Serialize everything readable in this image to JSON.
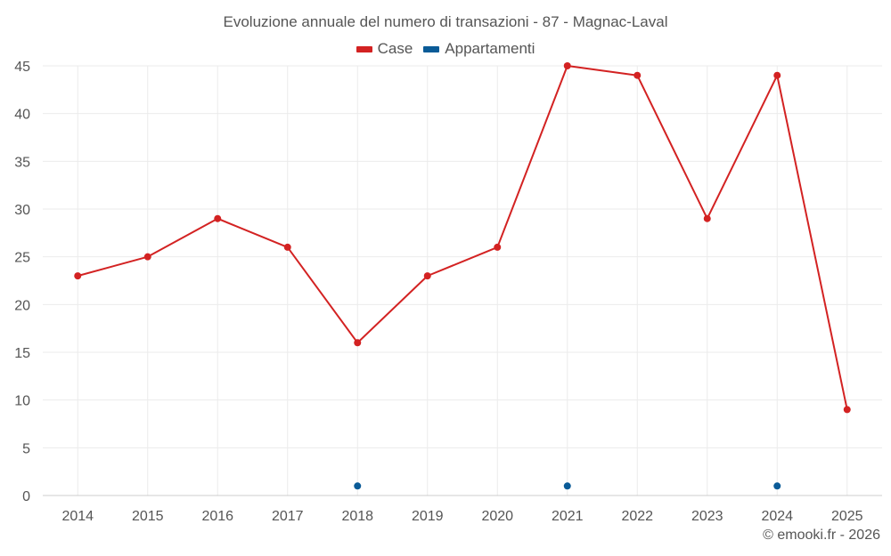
{
  "chart_data": {
    "type": "line",
    "title": "Evoluzione annuale del numero di transazioni - 87 - Magnac-Laval",
    "categories": [
      "2014",
      "2015",
      "2016",
      "2017",
      "2018",
      "2019",
      "2020",
      "2021",
      "2022",
      "2023",
      "2024",
      "2025"
    ],
    "series": [
      {
        "name": "Case",
        "color": "#d32222",
        "values": [
          23,
          25,
          29,
          26,
          16,
          23,
          26,
          45,
          44,
          29,
          44,
          9
        ]
      },
      {
        "name": "Appartamenti",
        "color": "#0a5b97",
        "values": [
          null,
          null,
          null,
          null,
          1,
          null,
          null,
          1,
          null,
          null,
          1,
          null
        ]
      }
    ],
    "ylim": [
      0,
      45
    ],
    "yticks": [
      0,
      5,
      10,
      15,
      20,
      25,
      30,
      35,
      40,
      45
    ],
    "grid": true,
    "legend_position": "top-center",
    "xlabel": "",
    "ylabel": ""
  },
  "credit": "© emooki.fr - 2026"
}
